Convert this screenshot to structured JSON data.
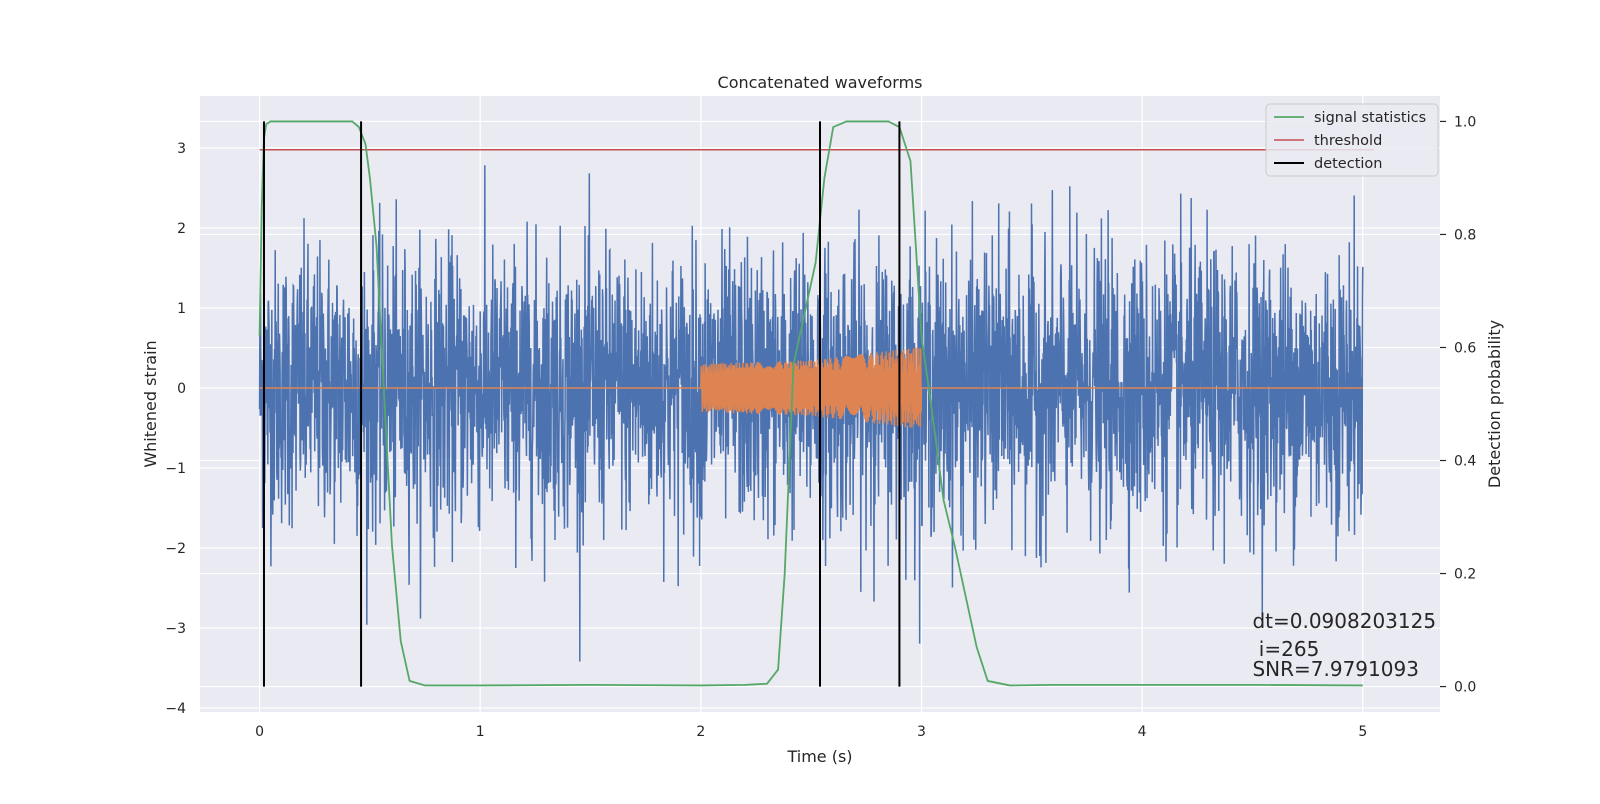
{
  "chart_data": {
    "type": "line",
    "title": "Concatenated waveforms",
    "xlabel": "Time (s)",
    "ylabel": "Whitened strain",
    "ylabel_right": "Detection probability",
    "xlim": [
      -0.27,
      5.35
    ],
    "ylim": [
      -4.05,
      3.65
    ],
    "ylim_right": [
      -0.045,
      1.045
    ],
    "x_ticks": [
      0,
      1,
      2,
      3,
      4,
      5
    ],
    "y_ticks": [
      -4,
      -3,
      -2,
      -1,
      0,
      1,
      2,
      3
    ],
    "y_ticks_right": [
      0.0,
      0.2,
      0.4,
      0.6,
      0.8,
      1.0
    ],
    "grid": true,
    "legend_position": "top-right",
    "colors": {
      "strain": "#4c72b0",
      "template": "#dd8452",
      "signal_statistics": "#55a868",
      "threshold": "#c44e52",
      "detection": "#000000",
      "plot_background": "#eaeaf2"
    },
    "series": [
      {
        "name": "",
        "role": "strain",
        "axis": "left",
        "x_range": [
          0,
          5
        ],
        "typical_amplitude": 0.85,
        "peak_range": [
          -3.65,
          3.3
        ]
      },
      {
        "name": "",
        "role": "template",
        "axis": "left",
        "x": [
          0,
          2.0,
          2.0,
          2.5,
          2.9,
          3.0,
          3.0,
          5.0
        ],
        "envelope": [
          0,
          0,
          0.3,
          0.35,
          0.48,
          0.52,
          0,
          0
        ]
      },
      {
        "name": "signal statistics",
        "role": "signal_statistics",
        "axis": "right",
        "x": [
          0,
          0.01,
          0.02,
          0.03,
          0.05,
          0.08,
          0.12,
          0.2,
          0.42,
          0.45,
          0.48,
          0.5,
          0.53,
          0.56,
          0.6,
          0.64,
          0.68,
          0.75,
          1.0,
          1.5,
          2.0,
          2.2,
          2.3,
          2.35,
          2.38,
          2.42,
          2.47,
          2.52,
          2.56,
          2.6,
          2.66,
          2.75,
          2.85,
          2.9,
          2.95,
          3.0,
          3.05,
          3.1,
          3.15,
          3.2,
          3.25,
          3.3,
          3.4,
          3.6,
          4.0,
          4.5,
          5.0
        ],
        "y": [
          0.62,
          0.85,
          0.97,
          0.995,
          1.0,
          1.0,
          1.0,
          1.0,
          1.0,
          0.99,
          0.96,
          0.9,
          0.78,
          0.55,
          0.25,
          0.08,
          0.01,
          0.002,
          0.002,
          0.003,
          0.002,
          0.003,
          0.005,
          0.03,
          0.2,
          0.57,
          0.66,
          0.75,
          0.9,
          0.99,
          1.0,
          1.0,
          1.0,
          0.99,
          0.93,
          0.62,
          0.48,
          0.33,
          0.25,
          0.16,
          0.07,
          0.01,
          0.002,
          0.003,
          0.003,
          0.003,
          0.002
        ]
      },
      {
        "name": "threshold",
        "role": "threshold",
        "axis": "right",
        "x": [
          0,
          5.05
        ],
        "y": [
          0.95,
          0.95
        ]
      },
      {
        "name": "detection",
        "role": "detection",
        "axis": "right",
        "x_positions": [
          0.02,
          0.46,
          2.54,
          2.9
        ],
        "y_range": [
          0.0,
          1.0
        ]
      }
    ],
    "annotations": [
      {
        "text": "dt=0.0908203125",
        "x": 4.5,
        "y": -3.0
      },
      {
        "text": " i=265",
        "x": 4.5,
        "y": -3.35
      },
      {
        "text": "SNR=7.9791093",
        "x": 4.5,
        "y": -3.6
      }
    ]
  }
}
